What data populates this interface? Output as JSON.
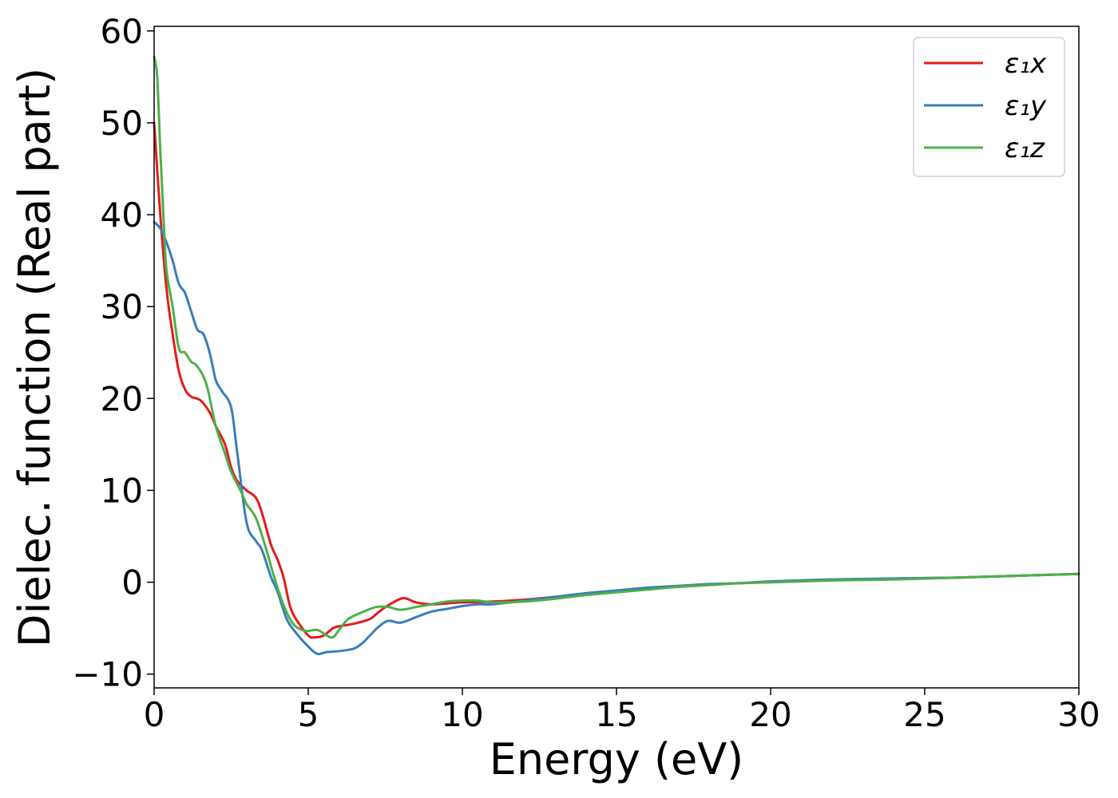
{
  "chart_data": {
    "type": "line",
    "xlabel": "Energy (eV)",
    "ylabel": "Dielec. function (Real part)",
    "xlim": [
      0,
      30
    ],
    "ylim": [
      -11.5,
      60.5
    ],
    "xticks": [
      0,
      5,
      10,
      15,
      20,
      25,
      30
    ],
    "yticks": [
      -10,
      0,
      10,
      20,
      30,
      40,
      50,
      60
    ],
    "xtick_labels": [
      "0",
      "5",
      "10",
      "15",
      "20",
      "25",
      "30"
    ],
    "ytick_labels": [
      "−10",
      "0",
      "10",
      "20",
      "30",
      "40",
      "50",
      "60"
    ],
    "grid": false,
    "legend_position": "top-right",
    "series": [
      {
        "name": "ε₁x",
        "color": "#e41a1c",
        "x": [
          0,
          0.2,
          0.4,
          0.6,
          0.8,
          1.0,
          1.2,
          1.5,
          1.8,
          2.0,
          2.3,
          2.5,
          2.7,
          3.0,
          3.3,
          3.5,
          3.8,
          4.0,
          4.2,
          4.4,
          4.6,
          5.0,
          5.2,
          5.5,
          5.8,
          6.0,
          6.5,
          7.0,
          7.3,
          7.6,
          8.0,
          8.2,
          8.5,
          9.0,
          9.5,
          10.0,
          11.0,
          12.0,
          13.0,
          14.0,
          15.0,
          16.0,
          17.0,
          18.0,
          19.0,
          20.0,
          22.0,
          24.0,
          26.0,
          28.0,
          30.0
        ],
        "y": [
          50,
          40,
          32,
          27,
          23,
          21,
          20.2,
          19.8,
          18.5,
          17.0,
          15.0,
          12.5,
          11.0,
          10.0,
          9.2,
          7.5,
          4.0,
          2.5,
          0.5,
          -2.5,
          -4.0,
          -5.8,
          -6.0,
          -5.8,
          -5.0,
          -4.8,
          -4.5,
          -4.0,
          -3.2,
          -2.5,
          -1.8,
          -1.8,
          -2.2,
          -2.4,
          -2.3,
          -2.2,
          -2.1,
          -1.9,
          -1.6,
          -1.3,
          -1.0,
          -0.7,
          -0.5,
          -0.3,
          -0.1,
          0.0,
          0.2,
          0.4,
          0.5,
          0.7,
          0.9
        ]
      },
      {
        "name": "ε₁y",
        "color": "#377eb8",
        "x": [
          0,
          0.2,
          0.4,
          0.6,
          0.8,
          1.0,
          1.2,
          1.4,
          1.6,
          1.8,
          2.0,
          2.2,
          2.5,
          2.7,
          3.0,
          3.3,
          3.5,
          3.8,
          4.0,
          4.3,
          4.6,
          5.0,
          5.3,
          5.6,
          6.0,
          6.5,
          6.8,
          7.0,
          7.3,
          7.6,
          8.0,
          8.5,
          9.0,
          9.5,
          10.0,
          10.5,
          11.0,
          12.0,
          13.0,
          14.0,
          15.0,
          16.0,
          17.0,
          18.0,
          19.0,
          20.0,
          22.0,
          24.0,
          26.0,
          28.0,
          30.0
        ],
        "y": [
          39.2,
          38.5,
          37.0,
          35.0,
          32.5,
          31.5,
          29.5,
          27.5,
          27.0,
          25.0,
          22.0,
          20.8,
          19.0,
          14.0,
          6.5,
          4.5,
          3.5,
          0.5,
          -1.0,
          -4.0,
          -5.5,
          -7.0,
          -7.8,
          -7.6,
          -7.5,
          -7.2,
          -6.5,
          -5.8,
          -4.8,
          -4.2,
          -4.4,
          -3.8,
          -3.2,
          -2.9,
          -2.6,
          -2.4,
          -2.4,
          -2.0,
          -1.6,
          -1.2,
          -0.9,
          -0.6,
          -0.4,
          -0.2,
          -0.1,
          0.1,
          0.3,
          0.4,
          0.5,
          0.7,
          0.9
        ]
      },
      {
        "name": "ε₁z",
        "color": "#4daf4a",
        "x": [
          0,
          0.1,
          0.2,
          0.3,
          0.4,
          0.6,
          0.8,
          1.0,
          1.2,
          1.4,
          1.7,
          2.0,
          2.3,
          2.5,
          2.8,
          3.0,
          3.3,
          3.6,
          3.9,
          4.2,
          4.5,
          4.8,
          5.0,
          5.3,
          5.6,
          5.8,
          6.0,
          6.3,
          6.8,
          7.2,
          7.6,
          8.0,
          8.5,
          9.0,
          9.5,
          10.0,
          10.5,
          11.0,
          12.0,
          13.0,
          14.0,
          15.0,
          16.0,
          17.0,
          18.0,
          19.0,
          20.0,
          22.0,
          24.0,
          26.0,
          28.0,
          30.0
        ],
        "y": [
          57.2,
          55.0,
          47.0,
          40.0,
          34.0,
          30.0,
          25.5,
          25.0,
          24.0,
          23.5,
          21.5,
          17.0,
          14.0,
          12.0,
          10.0,
          8.5,
          7.0,
          4.0,
          0.5,
          -2.5,
          -4.5,
          -5.2,
          -5.3,
          -5.2,
          -5.8,
          -6.0,
          -5.2,
          -4.0,
          -3.2,
          -2.7,
          -2.7,
          -3.0,
          -2.7,
          -2.4,
          -2.1,
          -2.0,
          -2.0,
          -2.2,
          -2.1,
          -1.8,
          -1.4,
          -1.1,
          -0.8,
          -0.5,
          -0.3,
          -0.1,
          0.0,
          0.2,
          0.3,
          0.5,
          0.7,
          0.9
        ]
      }
    ]
  }
}
